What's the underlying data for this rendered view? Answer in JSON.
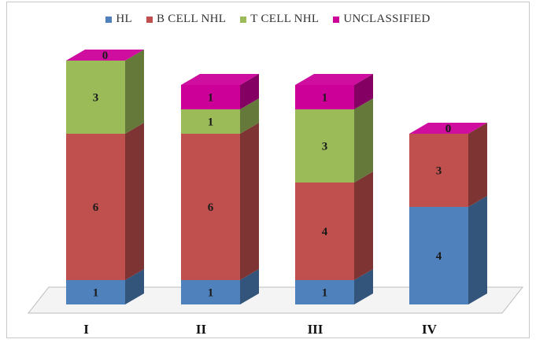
{
  "chart_data": {
    "type": "bar",
    "stacked": true,
    "style": "3d",
    "categories": [
      "I",
      "II",
      "III",
      "IV"
    ],
    "series": [
      {
        "name": "HL",
        "color": "#4f81bd",
        "values": [
          1,
          1,
          1,
          4
        ]
      },
      {
        "name": "B CELL NHL",
        "color": "#c0504d",
        "values": [
          6,
          6,
          4,
          3
        ]
      },
      {
        "name": "T CELL NHL",
        "color": "#9bbb59",
        "values": [
          3,
          1,
          3,
          0
        ]
      },
      {
        "name": "UNCLASSIFIED",
        "color": "#cc0099",
        "values": [
          0,
          1,
          1,
          0
        ]
      }
    ],
    "legend_position": "top",
    "grid": false,
    "ylim": [
      0,
      10
    ],
    "title": "",
    "xlabel": "",
    "ylabel": ""
  }
}
